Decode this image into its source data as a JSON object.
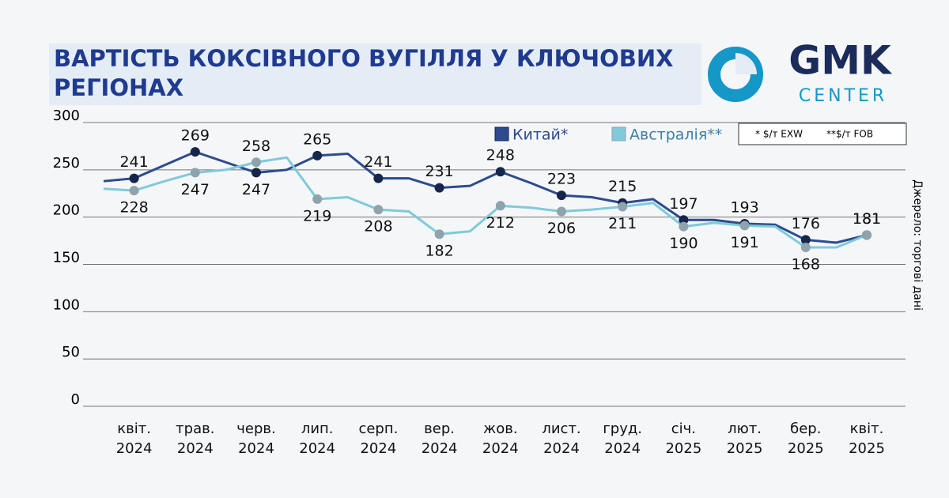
{
  "chart_data": {
    "type": "line",
    "title": "ВАРТІСТЬ КОКСІВНОГО ВУГІЛЛЯ У КЛЮЧОВИХ РЕГІОНАХ",
    "categories": [
      null,
      "квіт. 2024",
      null,
      "трав. 2024",
      null,
      "черв. 2024",
      null,
      "лип. 2024",
      null,
      "серп. 2024",
      null,
      "вер. 2024",
      null,
      "жов. 2024",
      null,
      "лист. 2024",
      null,
      "груд. 2024",
      null,
      "січ. 2025",
      null,
      "лют. 2025",
      null,
      "бер. 2025",
      null,
      "квіт. 2025"
    ],
    "series": [
      {
        "name": "Китай*",
        "color": "#2d4b8e",
        "marker_color": "#16254a",
        "values": [
          238,
          241,
          255,
          269,
          258,
          247,
          250,
          265,
          267,
          241,
          241,
          231,
          233,
          248,
          236,
          223,
          221,
          215,
          219,
          197,
          197,
          193,
          192,
          176,
          173,
          181
        ]
      },
      {
        "name": "Австралія**",
        "color": "#80cad9",
        "marker_color": "#8ea3ab",
        "values": [
          230,
          228,
          238,
          247,
          250,
          258,
          263,
          219,
          221,
          208,
          206,
          182,
          185,
          212,
          210,
          206,
          208,
          211,
          215,
          190,
          194,
          191,
          190,
          168,
          168,
          181
        ]
      }
    ],
    "ylim": [
      0,
      300
    ],
    "yticks": [
      0,
      50,
      100,
      150,
      200,
      250,
      300
    ],
    "grid": true,
    "notes": [
      "* $/т EXW",
      "**$/т FOB"
    ],
    "source": "Джерело: торгові дані",
    "logo": {
      "main": "GMK",
      "sub": "CENTER"
    }
  }
}
